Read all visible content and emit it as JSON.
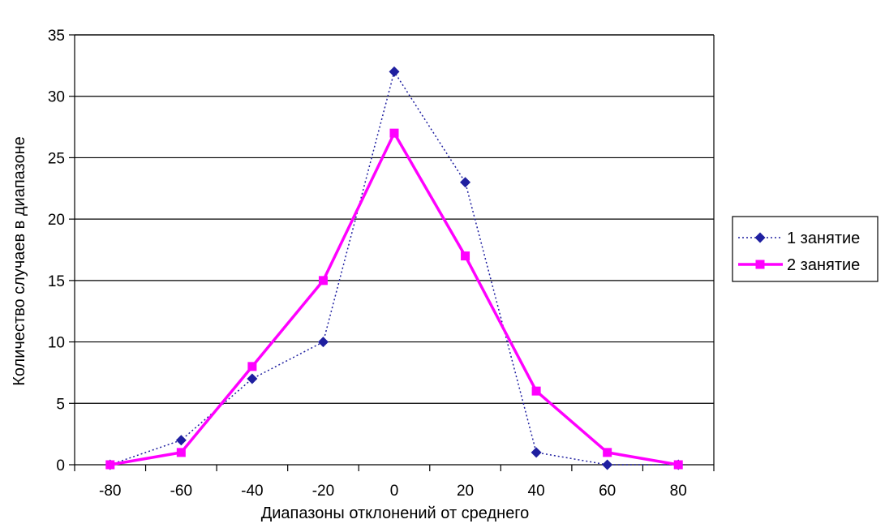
{
  "chart_data": {
    "type": "line",
    "title": "",
    "xlabel": "Диапазоны отклонений от  среднего",
    "ylabel": "Количество случаев в диапазоне",
    "x": [
      -80,
      -60,
      -40,
      -20,
      0,
      20,
      40,
      60,
      80
    ],
    "x_tick_labels": [
      "-80",
      "-60",
      "-40",
      "-20",
      "0",
      "20",
      "40",
      "60",
      "80"
    ],
    "y_tick_labels": [
      "0",
      "5",
      "10",
      "15",
      "20",
      "25",
      "30",
      "35"
    ],
    "ylim": [
      0,
      35
    ],
    "y_tick_step": 5,
    "grid": "horizontal",
    "legend_position": "right",
    "series": [
      {
        "name": "1 занятие",
        "values": [
          0,
          2,
          7,
          10,
          32,
          23,
          1,
          0,
          0
        ],
        "color": "#1f1fa0",
        "line_style": "dotted",
        "marker": "diamond"
      },
      {
        "name": "2 занятие",
        "values": [
          0,
          1,
          8,
          15,
          27,
          17,
          6,
          1,
          0
        ],
        "color": "#ff00ff",
        "line_style": "solid",
        "marker": "square"
      }
    ]
  }
}
